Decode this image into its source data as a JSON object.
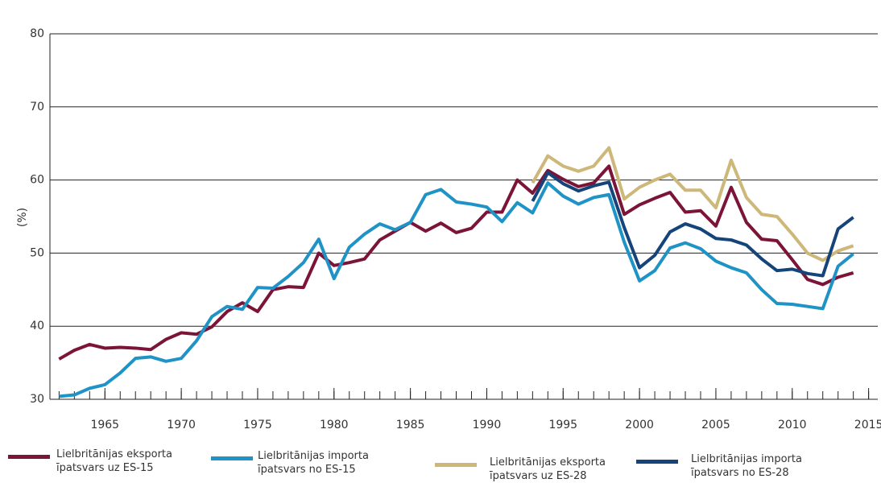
{
  "chart_data": {
    "type": "line",
    "y_label": "(%)",
    "x": [
      1962,
      1963,
      1964,
      1965,
      1966,
      1967,
      1968,
      1969,
      1970,
      1971,
      1972,
      1973,
      1974,
      1975,
      1976,
      1977,
      1978,
      1979,
      1980,
      1981,
      1982,
      1983,
      1984,
      1985,
      1986,
      1987,
      1988,
      1989,
      1990,
      1991,
      1992,
      1993,
      1994,
      1995,
      1996,
      1997,
      1998,
      1999,
      2000,
      2001,
      2002,
      2003,
      2004,
      2005,
      2006,
      2007,
      2008,
      2009,
      2010,
      2011,
      2012,
      2013,
      2014
    ],
    "series": [
      {
        "name": "Lielbritānijas eksporta īpatsvars uz ES-15",
        "color": "#7b1438",
        "values": [
          35.5,
          36.7,
          37.5,
          37.0,
          37.1,
          37.0,
          36.8,
          38.2,
          39.1,
          38.9,
          39.9,
          42.0,
          43.2,
          42.0,
          45.0,
          45.4,
          45.3,
          50.0,
          48.3,
          48.7,
          49.2,
          51.8,
          53.0,
          54.2,
          53.0,
          54.1,
          52.8,
          53.4,
          55.6,
          55.6,
          60.0,
          58.2,
          61.3,
          60.1,
          59.1,
          59.6,
          61.9,
          55.3,
          56.6,
          57.5,
          58.3,
          55.6,
          55.8,
          53.7,
          59.0,
          54.2,
          51.9,
          51.7,
          49.1,
          46.4,
          45.7,
          46.7,
          47.3
        ]
      },
      {
        "name": "Lielbritānijas importa īpatsvars no ES-15",
        "color": "#1f93c6",
        "values": [
          30.4,
          30.6,
          31.5,
          32.0,
          33.6,
          35.6,
          35.8,
          35.2,
          35.6,
          38.0,
          41.3,
          42.7,
          42.3,
          45.3,
          45.2,
          46.8,
          48.7,
          51.9,
          46.5,
          50.8,
          52.6,
          54.0,
          53.2,
          54.2,
          58.0,
          58.7,
          57.0,
          56.7,
          56.3,
          54.3,
          56.9,
          55.5,
          59.6,
          57.8,
          56.7,
          57.6,
          58.0,
          51.5,
          46.2,
          47.6,
          50.7,
          51.4,
          50.6,
          48.9,
          48.0,
          47.3,
          45.0,
          43.1,
          43.0,
          42.7,
          42.4,
          48.2,
          49.9
        ]
      },
      {
        "name": "Lielbritānijas eksporta īpatsvars uz ES-28",
        "color": "#cdb779",
        "values": [
          null,
          null,
          null,
          null,
          null,
          null,
          null,
          null,
          null,
          null,
          null,
          null,
          null,
          null,
          null,
          null,
          null,
          null,
          null,
          null,
          null,
          null,
          null,
          null,
          null,
          null,
          null,
          null,
          null,
          null,
          null,
          59.6,
          63.3,
          61.9,
          61.2,
          61.9,
          64.4,
          57.4,
          59.0,
          60.0,
          60.8,
          58.6,
          58.6,
          56.2,
          62.7,
          57.6,
          55.3,
          55.0,
          52.6,
          50.0,
          49.0,
          50.3,
          51.0
        ]
      },
      {
        "name": "Lielbritānijas importa īpatsvars no ES-28",
        "color": "#15447a",
        "values": [
          null,
          null,
          null,
          null,
          null,
          null,
          null,
          null,
          null,
          null,
          null,
          null,
          null,
          null,
          null,
          null,
          null,
          null,
          null,
          null,
          null,
          null,
          null,
          null,
          null,
          null,
          null,
          null,
          null,
          null,
          null,
          57.1,
          61.0,
          59.5,
          58.5,
          59.2,
          59.7,
          53.5,
          48.0,
          49.7,
          52.9,
          54.0,
          53.3,
          52.0,
          51.8,
          51.1,
          49.2,
          47.6,
          47.8,
          47.2,
          46.9,
          53.3,
          54.9
        ]
      }
    ],
    "xlim": [
      1961.4,
      2015.6
    ],
    "xticks": [
      1965,
      1970,
      1975,
      1980,
      1985,
      1990,
      1995,
      2000,
      2005,
      2010,
      2015
    ],
    "ylim": [
      30,
      80
    ],
    "yticks": [
      30,
      40,
      50,
      60,
      70,
      80
    ],
    "grid": true
  }
}
